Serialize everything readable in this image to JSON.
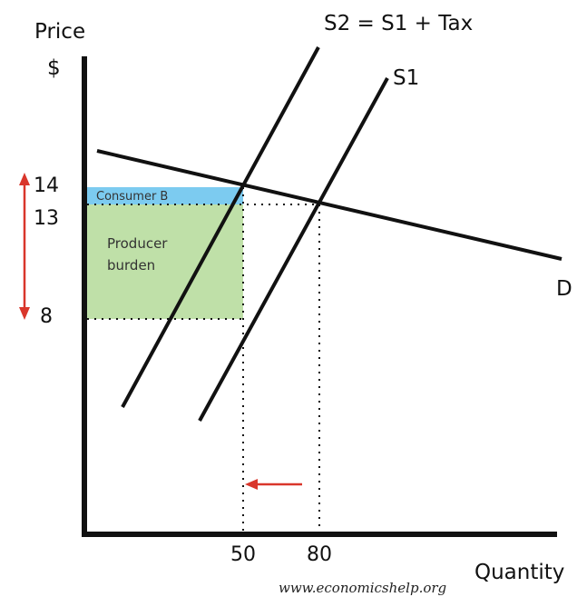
{
  "diagram": {
    "y_axis": {
      "title": "Price",
      "unit": "$"
    },
    "x_axis": {
      "title": "Quantity"
    },
    "curves": {
      "s2": "S2 = S1 + Tax",
      "s1": "S1",
      "d": "D"
    },
    "price_ticks": {
      "p14": "14",
      "p13": "13",
      "p8": "8"
    },
    "quantity_ticks": {
      "q50": "50",
      "q80": "80"
    },
    "areas": {
      "consumer": "Consumer B",
      "producer_line1": "Producer",
      "producer_line2": "burden"
    },
    "colors": {
      "consumer_fill": "#7ccbf0",
      "producer_fill": "#bfe0a8",
      "arrow": "#d9362b",
      "line": "#111111"
    },
    "credit": "www.economicshelp.org"
  }
}
